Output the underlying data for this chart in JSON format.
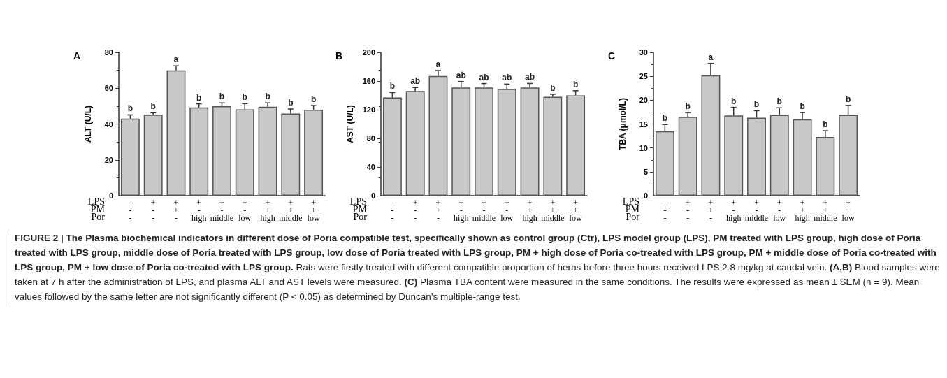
{
  "chart_data": [
    {
      "type": "bar",
      "title": "A",
      "ylabel": "ALT (U/L)",
      "xlabel": "LPS\nPM\nPor",
      "categories": [
        "-\n-\n-",
        "+\n-\n-",
        "+\n+\n-",
        "+\n-\nhigh",
        "+\n-\nmiddle",
        "+\n-\nlow",
        "+\n+\nhigh",
        "+\n+\nmiddle",
        "+\n+\nlow"
      ],
      "values": [
        43.0,
        45.2,
        70.0,
        49.3,
        50.0,
        48.2,
        49.7,
        45.9,
        48.0
      ],
      "errors": [
        2.1,
        1.1,
        2.5,
        2.0,
        1.8,
        3.2,
        2.1,
        2.5,
        2.3
      ],
      "value_labels": [
        "b",
        "b",
        "a",
        "b",
        "b",
        "b",
        "b",
        "b",
        "b"
      ],
      "color": "#c8c8c8",
      "ylim": [
        0,
        80
      ],
      "yticks": [
        0,
        20,
        40,
        60,
        80
      ],
      "grid": false,
      "annotations": [
        "FIGURE 2 | The Plasma biochemical indicators in different dose of Poria compatible test, specifically shown as control group (Ctr), LPS model group (LPS), PM treated with LPS group, high dose of Poria treated with LPS group, middle dose of Poria treated with LPS group, low dose of Poria treated with LPS group, PM + high dose of Poria co-treated with LPS group, PM + middle dose of Poria co-treated with LPS group, PM + low dose of Poria co-treated with LPS group.",
        "Rats were firstly treated with different compatible proportion of herbs before three hours received LPS 2.8 mg/kg at caudal vein.",
        "(A,B)",
        "Blood samples were taken at 7 h after the administration of LPS, and plasma ALT and AST levels were measured.",
        "(C)",
        "Plasma TBA content were measured in the same conditions. The results were expressed as mean ± SEM (n = 9). Mean values followed by the same letter are not significantly different (P < 0.05) as determined by Duncan’s multiple-range test."
      ]
    },
    {
      "type": "bar",
      "title": "B",
      "ylabel": "AST (U/L)",
      "xlabel": "LPS\nPM\nPor",
      "categories": [
        "-\n-\n-",
        "+\n-\n-",
        "+\n+\n-",
        "+\n-\nhigh",
        "+\n-\nmiddle",
        "+\n-\nlow",
        "+\n+\nhigh",
        "+\n+\nmiddle",
        "+\n+\nlow"
      ],
      "values": [
        137,
        146,
        167,
        151,
        151,
        149,
        151,
        138,
        140
      ],
      "errors": [
        7.0,
        5.0,
        7.6,
        8.4,
        5.5,
        6.7,
        5.6,
        3.6,
        6.5
      ],
      "value_labels": [
        "b",
        "ab",
        "a",
        "ab",
        "ab",
        "ab",
        "ab",
        "b",
        "b"
      ],
      "color": "#c8c8c8",
      "ylim": [
        0,
        200
      ],
      "yticks": [
        0,
        40,
        80,
        120,
        160,
        200
      ],
      "grid": false
    },
    {
      "type": "bar",
      "title": "C",
      "ylabel": "TBA (μmol/L)",
      "xlabel": "LPS\nPM\nPor",
      "categories": [
        "-\n-\n-",
        "+\n-\n-",
        "+\n+\n-",
        "+\n-\nhigh",
        "+\n-\nmiddle",
        "+\n-\nlow",
        "+\n+\nhigh",
        "+\n+\nmiddle",
        "+\n+\nlow"
      ],
      "values": [
        13.5,
        16.5,
        25.2,
        16.8,
        16.3,
        16.9,
        16.0,
        12.3,
        16.9
      ],
      "errors": [
        1.4,
        0.9,
        2.5,
        1.7,
        1.5,
        1.5,
        1.4,
        1.3,
        2.0
      ],
      "value_labels": [
        "b",
        "b",
        "a",
        "b",
        "b",
        "b",
        "b",
        "b",
        "b"
      ],
      "color": "#c8c8c8",
      "ylim": [
        0,
        30
      ],
      "yticks": [
        0,
        5,
        10,
        15,
        20,
        25,
        30
      ],
      "grid": false
    }
  ]
}
